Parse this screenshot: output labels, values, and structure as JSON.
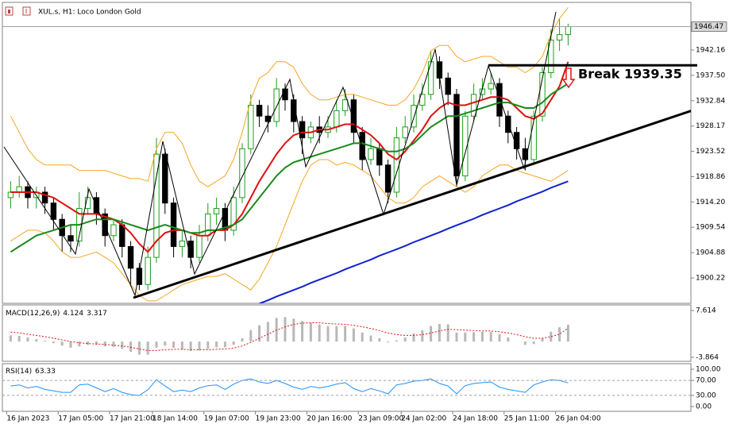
{
  "chart_data": [
    {
      "type": "candlestick",
      "title": "XUL.s, H1: Loco London Gold",
      "categories": [
        "16 Jan 2023",
        null,
        null,
        null,
        null,
        null,
        "17 Jan 05:00",
        null,
        null,
        null,
        null,
        null,
        "17 Jan 21:00",
        null,
        null,
        null,
        null,
        "18 Jan 14:00",
        null,
        null,
        null,
        null,
        null,
        "19 Jan 07:00",
        null,
        null,
        null,
        null,
        null,
        "19 Jan 23:00",
        null,
        null,
        null,
        null,
        null,
        "20 Jan 16:00",
        null,
        null,
        null,
        null,
        null,
        "23 Jan 09:00",
        null,
        null,
        null,
        null,
        "24 Jan 02:00",
        null,
        null,
        null,
        null,
        null,
        "24 Jan 18:00",
        null,
        null,
        null,
        null,
        null,
        "25 Jan 11:00",
        null,
        null,
        null,
        null,
        null,
        "26 Jan 04:00",
        null
      ],
      "open": [
        1915,
        1916,
        1917,
        1915,
        1916,
        1914,
        1911,
        1908,
        1907,
        1913,
        1915,
        1912,
        1908,
        1910,
        1906,
        1902,
        1899,
        1904,
        1923,
        1914,
        1906,
        1907,
        1904,
        1908,
        1912,
        1913,
        1909,
        1915,
        1924,
        1932,
        1930,
        1929,
        1935,
        1933,
        1929,
        1926,
        1928,
        1927,
        1928,
        1931,
        1933,
        1927,
        1922,
        1924,
        1921,
        1916,
        1926,
        1928,
        1932,
        1934,
        1940,
        1937,
        1934,
        1919,
        1930,
        1934,
        1935,
        1936,
        1930,
        1927,
        1924,
        1922,
        1930,
        1938,
        1944,
        1945
      ],
      "high": [
        1918,
        1919,
        1918,
        1917,
        1917,
        1915,
        1912,
        1910,
        1916,
        1917,
        1916,
        1913,
        1911,
        1911,
        1907,
        1903,
        1906,
        1926,
        1924,
        1915,
        1909,
        1908,
        1910,
        1914,
        1915,
        1914,
        1917,
        1925,
        1934,
        1933,
        1932,
        1937,
        1936,
        1934,
        1930,
        1929,
        1930,
        1930,
        1933,
        1935,
        1934,
        1928,
        1926,
        1925,
        1922,
        1928,
        1930,
        1934,
        1936,
        1942,
        1941,
        1938,
        1935,
        1931,
        1936,
        1937,
        1938,
        1937,
        1931,
        1928,
        1926,
        1931,
        1939,
        1946,
        1948,
        1947
      ],
      "low": [
        1913,
        1915,
        1913,
        1913,
        1912,
        1909,
        1905,
        1905,
        1906,
        1912,
        1910,
        1906,
        1907,
        1904,
        1899,
        1898,
        1898,
        1903,
        1912,
        1904,
        1904,
        1902,
        1903,
        1907,
        1910,
        1907,
        1908,
        1914,
        1923,
        1928,
        1927,
        1928,
        1931,
        1927,
        1923,
        1925,
        1925,
        1926,
        1927,
        1930,
        1925,
        1920,
        1921,
        1919,
        1914,
        1915,
        1925,
        1927,
        1931,
        1933,
        1935,
        1932,
        1917,
        1918,
        1929,
        1933,
        1934,
        1928,
        1925,
        1922,
        1920,
        1921,
        1929,
        1937,
        1942,
        1943
      ],
      "close": [
        1916,
        1917,
        1915,
        1916,
        1914,
        1911,
        1908,
        1907,
        1913,
        1915,
        1912,
        1908,
        1910,
        1906,
        1902,
        1899,
        1904,
        1923,
        1914,
        1906,
        1907,
        1904,
        1908,
        1912,
        1913,
        1909,
        1915,
        1924,
        1932,
        1930,
        1929,
        1935,
        1933,
        1929,
        1926,
        1928,
        1927,
        1928,
        1931,
        1933,
        1927,
        1922,
        1924,
        1921,
        1916,
        1926,
        1928,
        1932,
        1934,
        1940,
        1937,
        1934,
        1919,
        1930,
        1934,
        1935,
        1936,
        1930,
        1927,
        1924,
        1922,
        1930,
        1938,
        1944,
        1945,
        1946.47
      ],
      "up_color": "#1e9e1e",
      "down_color": "#000000",
      "overlays": [
        {
          "color": "#f5a623",
          "width": 1,
          "values": [
            1930,
            1927,
            1924,
            1922,
            1921,
            1921,
            1921,
            1921,
            1920,
            1920,
            1920,
            1920,
            1919.5,
            1919,
            1918.5,
            1918.5,
            1918,
            1924,
            1927,
            1927,
            1925,
            1921,
            1918,
            1917,
            1918,
            1919,
            1922,
            1927,
            1933,
            1937,
            1938,
            1940,
            1940,
            1939,
            1936,
            1934,
            1933,
            1933,
            1933.5,
            1934,
            1934,
            1933.5,
            1933,
            1932.5,
            1932,
            1932,
            1933,
            1935,
            1938,
            1942,
            1943,
            1943,
            1941,
            1940,
            1940.5,
            1941,
            1941,
            1940,
            1939,
            1939,
            1938,
            1939,
            1941,
            1945,
            1948,
            1950
          ]
        },
        {
          "color": "#f5a623",
          "width": 1,
          "values": [
            1907,
            1908,
            1909,
            1909,
            1908.5,
            1907,
            1905,
            1904,
            1904,
            1904.5,
            1905,
            1904,
            1903,
            1901,
            1899,
            1897,
            1896,
            1896,
            1897,
            1898,
            1899,
            1899.5,
            1900,
            1900.5,
            1900.5,
            1901,
            1900,
            1899,
            1898,
            1900,
            1903,
            1906,
            1910,
            1914,
            1918,
            1921,
            1922,
            1922,
            1921,
            1921.5,
            1921,
            1920,
            1919,
            1917,
            1915,
            1914,
            1914,
            1915,
            1917,
            1918,
            1919,
            1918,
            1917,
            1916,
            1917,
            1919,
            1920,
            1921,
            1921,
            1920,
            1919.5,
            1919,
            1918.5,
            1918,
            1919,
            1920
          ]
        },
        {
          "color": "#e01010",
          "width": 2,
          "values": [
            1916,
            1916,
            1916,
            1916,
            1915.5,
            1915,
            1914,
            1913,
            1912,
            1912,
            1912,
            1911.5,
            1911,
            1910,
            1908.5,
            1906.5,
            1905,
            1907,
            1908.5,
            1909,
            1909,
            1908.5,
            1908,
            1908,
            1909,
            1909,
            1910,
            1912,
            1915,
            1918,
            1920.5,
            1923,
            1925,
            1926.5,
            1927,
            1927,
            1927.5,
            1927.5,
            1928,
            1928.5,
            1928.5,
            1927.5,
            1926.5,
            1925,
            1923,
            1922,
            1923.5,
            1925.5,
            1927.5,
            1930,
            1931.5,
            1932.5,
            1932,
            1932,
            1932.5,
            1933,
            1933.5,
            1933.5,
            1933,
            1931.5,
            1930,
            1929.5,
            1930.5,
            1933,
            1935.5,
            1940
          ]
        },
        {
          "color": "#1a8a1a",
          "width": 2,
          "values": [
            1905,
            1906,
            1907,
            1908,
            1908.5,
            1909,
            1909.5,
            1910,
            1910,
            1910.5,
            1911,
            1911,
            1911,
            1910.5,
            1910,
            1909.5,
            1909,
            1909.5,
            1910,
            1909.5,
            1909,
            1908.5,
            1908.5,
            1909,
            1909,
            1909.5,
            1910,
            1911,
            1913,
            1915,
            1917,
            1919,
            1920.5,
            1921.5,
            1922,
            1922.5,
            1923,
            1923.5,
            1924,
            1924.5,
            1925,
            1925,
            1924.5,
            1924,
            1923.5,
            1923.5,
            1924,
            1925,
            1926.5,
            1928,
            1929,
            1930,
            1930,
            1930.5,
            1931,
            1931.5,
            1932,
            1932.5,
            1932.5,
            1932,
            1931.5,
            1931.5,
            1932.5,
            1934,
            1935,
            1936
          ]
        },
        {
          "color": "#1020d0",
          "width": 2,
          "values": [
            null,
            null,
            null,
            null,
            null,
            null,
            null,
            null,
            null,
            null,
            null,
            null,
            null,
            null,
            null,
            null,
            null,
            null,
            null,
            null,
            null,
            null,
            null,
            null,
            null,
            null,
            null,
            null,
            null,
            1895.5,
            1896.1,
            1896.8,
            1897.4,
            1898,
            1898.6,
            1899.3,
            1899.9,
            1900.5,
            1901.1,
            1901.8,
            1902.4,
            1903,
            1903.6,
            1904.3,
            1904.9,
            1905.5,
            1906.1,
            1906.8,
            1907.4,
            1908,
            1908.6,
            1909.3,
            1909.9,
            1910.5,
            1911.1,
            1911.8,
            1912.4,
            1913,
            1913.6,
            1914.3,
            1914.9,
            1915.5,
            1916.1,
            1916.8,
            1917.4,
            1918
          ]
        }
      ],
      "ylim": [
        1895.54,
        1950.64
      ],
      "yticks": [
        1900.22,
        1904.88,
        1909.54,
        {
          "value": 1914.2,
          "label": "1914.20"
        },
        1918.86,
        1923.52,
        1928.17,
        1932.84,
        {
          "value": 1937.5,
          "label": "1937.50"
        },
        1942.16
      ],
      "annotation": {
        "text": "Break 1939.35",
        "value": 1939.35
      }
    },
    {
      "type": "macd",
      "title": "MACD(12,26,9)",
      "histogram": [
        1.5,
        1.4,
        1,
        0.6,
        0.2,
        -0.4,
        -1,
        -1.5,
        -1.2,
        -0.8,
        -0.8,
        -1.2,
        -1.3,
        -1.8,
        -2.5,
        -3.2,
        -3.2,
        -1.5,
        -1,
        -1.5,
        -2,
        -2.3,
        -2.2,
        -1.8,
        -1.4,
        -1.4,
        -0.8,
        0.8,
        2.8,
        4,
        4.8,
        5.8,
        6,
        5.6,
        5,
        4.6,
        4.2,
        3.8,
        3.8,
        3.8,
        3.2,
        2.2,
        1.5,
        0.8,
        -0.2,
        0.3,
        1,
        2,
        2.8,
        3.8,
        4.3,
        4.2,
        2.2,
        2.2,
        2.3,
        2.4,
        2.4,
        1.8,
        1,
        0,
        -0.8,
        -0.6,
        0.8,
        2.4,
        3.5,
        4.124
      ],
      "signal": [
        2.3,
        2.1,
        1.8,
        1.5,
        1.2,
        0.8,
        0.4,
        0,
        -0.3,
        -0.5,
        -0.6,
        -0.7,
        -0.9,
        -1.1,
        -1.4,
        -1.8,
        -2.2,
        -2.2,
        -2,
        -1.9,
        -1.9,
        -2,
        -2,
        -2,
        -1.9,
        -1.8,
        -1.6,
        -1.1,
        -0.2,
        0.8,
        1.8,
        2.8,
        3.6,
        4.2,
        4.5,
        4.6,
        4.6,
        4.4,
        4.3,
        4.2,
        4,
        3.6,
        3.2,
        2.7,
        2.1,
        1.7,
        1.5,
        1.5,
        1.7,
        2.1,
        2.6,
        3,
        2.9,
        2.8,
        2.7,
        2.6,
        2.6,
        2.4,
        2.1,
        1.7,
        1.2,
        0.8,
        0.8,
        1.2,
        1.8,
        3.317
      ],
      "histogram_color": "#b8b8b8",
      "signal_color": "#e01010",
      "ylim": [
        -3.864,
        7.614
      ],
      "yticks": [
        7.614,
        -3.864
      ]
    },
    {
      "type": "line",
      "title": "RSI(14)",
      "values": [
        55,
        58,
        50,
        54,
        46,
        42,
        38,
        38,
        58,
        60,
        50,
        40,
        48,
        38,
        32,
        30,
        45,
        72,
        55,
        40,
        44,
        40,
        50,
        56,
        58,
        46,
        60,
        70,
        74,
        66,
        62,
        70,
        62,
        52,
        46,
        54,
        50,
        54,
        60,
        64,
        48,
        40,
        48,
        42,
        34,
        58,
        62,
        68,
        70,
        74,
        62,
        55,
        34,
        56,
        62,
        64,
        66,
        52,
        46,
        42,
        38,
        58,
        66,
        72,
        70,
        63.33
      ],
      "color": "#1e90ff",
      "ylim": [
        0,
        100
      ],
      "yticks": [
        {
          "value": 100,
          "label": "100.00"
        },
        {
          "value": 70,
          "label": "70.00"
        },
        {
          "value": 30,
          "label": "30.00"
        },
        {
          "value": 0,
          "label": "0.00"
        }
      ]
    }
  ]
}
